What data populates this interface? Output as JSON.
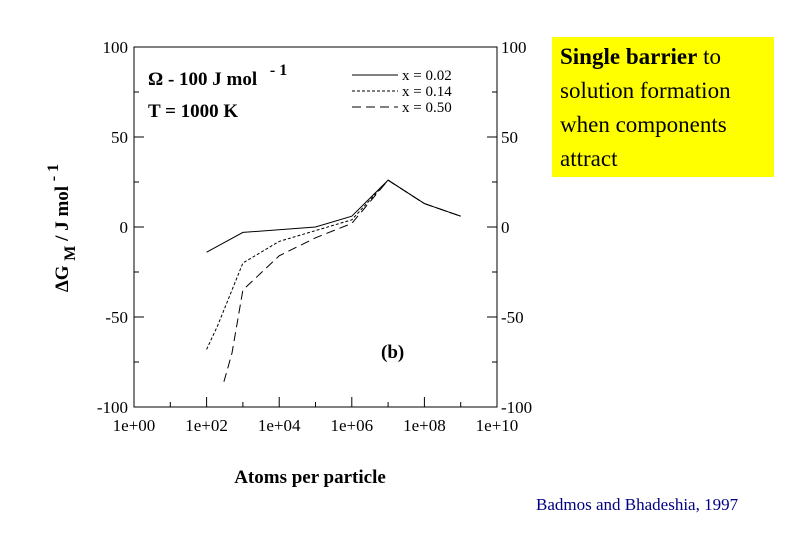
{
  "chart_data": {
    "type": "line",
    "panel_label": "(b)",
    "xlabel": "Atoms per particle",
    "ylabel_main": "ΔG",
    "ylabel_sub": "M",
    "ylabel_unit": " / J mol",
    "ylabel_sup": "- 1",
    "x_scale": "log",
    "xlim": [
      1,
      10000000000
    ],
    "ylim": [
      -100,
      100
    ],
    "x_ticks": [
      1,
      100,
      10000,
      1000000,
      100000000,
      10000000000
    ],
    "x_tick_labels": [
      "1e+00",
      "1e+02",
      "1e+04",
      "1e+06",
      "1e+08",
      "1e+10"
    ],
    "y_ticks": [
      100,
      50,
      0,
      -50,
      -100
    ],
    "y_tick_labels": [
      "100",
      "50",
      "0",
      "-50",
      "-100"
    ],
    "annotation_omega": "Ω - 100 J mol",
    "annotation_omega_sup": "- 1",
    "annotation_temp": "T = 1000 K",
    "series": [
      {
        "name": "x = 0.02",
        "dash": "solid",
        "x": [
          100,
          1000,
          100000,
          1000000,
          10000000,
          100000000,
          1000000000
        ],
        "y": [
          -14,
          -3,
          0,
          6,
          26,
          13,
          6
        ]
      },
      {
        "name": "x = 0.14",
        "dash": "short",
        "x": [
          100,
          200,
          1000,
          10000,
          100000,
          1000000,
          10000000,
          100000000,
          1000000000
        ],
        "y": [
          -68,
          -55,
          -20,
          -8,
          -2,
          4,
          26,
          13,
          6
        ]
      },
      {
        "name": "x = 0.50",
        "dash": "long",
        "x": [
          300,
          500,
          1000,
          10000,
          100000,
          1000000,
          10000000,
          100000000,
          1000000000
        ],
        "y": [
          -86,
          -70,
          -35,
          -16,
          -6,
          2,
          26,
          13,
          6
        ]
      }
    ]
  },
  "callout": {
    "bold": "Single barrier",
    "rest": " to solution formation when components attract"
  },
  "citation": "Badmos and Bhadeshia, 1997"
}
